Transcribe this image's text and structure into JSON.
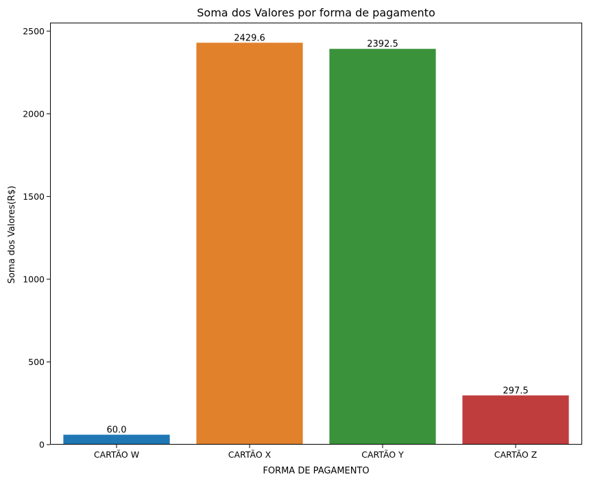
{
  "chart_data": {
    "type": "bar",
    "title": "Soma dos Valores por forma de pagamento",
    "xlabel": "FORMA DE PAGAMENTO",
    "ylabel": "Soma dos Valores(R$)",
    "categories": [
      "CARTÃO W",
      "CARTÃO X",
      "CARTÃO Y",
      "CARTÃO Z"
    ],
    "values": [
      60.0,
      2429.6,
      2392.5,
      297.5
    ],
    "data_labels": [
      "60.0",
      "2429.6",
      "2392.5",
      "297.5"
    ],
    "colors": [
      "#1f77b4",
      "#e1812c",
      "#3a923a",
      "#c03d3e"
    ],
    "ylim": [
      0,
      2551
    ],
    "yticks": [
      0,
      500,
      1000,
      1500,
      2000,
      2500
    ],
    "grid": false,
    "legend": "none"
  }
}
